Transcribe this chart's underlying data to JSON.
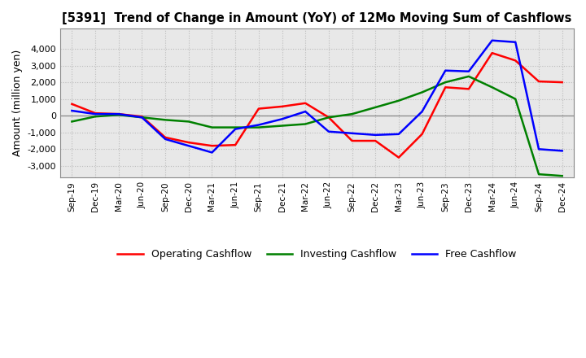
{
  "title": "[5391]  Trend of Change in Amount (YoY) of 12Mo Moving Sum of Cashflows",
  "ylabel": "Amount (million yen)",
  "x_labels": [
    "Sep-19",
    "Dec-19",
    "Mar-20",
    "Jun-20",
    "Sep-20",
    "Dec-20",
    "Mar-21",
    "Jun-21",
    "Sep-21",
    "Dec-21",
    "Mar-22",
    "Jun-22",
    "Sep-22",
    "Dec-22",
    "Mar-23",
    "Jun-23",
    "Sep-23",
    "Dec-23",
    "Mar-24",
    "Jun-24",
    "Sep-24",
    "Dec-24"
  ],
  "operating": [
    700,
    150,
    100,
    -50,
    -1300,
    -1600,
    -1800,
    -1750,
    420,
    550,
    750,
    -100,
    -1500,
    -1500,
    -2500,
    -1100,
    1700,
    1600,
    3750,
    3300,
    2050,
    2000
  ],
  "investing": [
    -350,
    -50,
    50,
    -100,
    -250,
    -350,
    -700,
    -700,
    -700,
    -600,
    -500,
    -100,
    100,
    500,
    900,
    1400,
    2000,
    2350,
    1700,
    1000,
    -3500,
    -3600
  ],
  "free": [
    300,
    100,
    100,
    -100,
    -1400,
    -1800,
    -2200,
    -800,
    -550,
    -200,
    250,
    -950,
    -1050,
    -1150,
    -1100,
    250,
    2700,
    2650,
    4500,
    4400,
    -2000,
    -2100
  ],
  "operating_color": "#FF0000",
  "investing_color": "#008000",
  "free_color": "#0000FF",
  "ylim": [
    -3700,
    5200
  ],
  "yticks": [
    -3000,
    -2000,
    -1000,
    0,
    1000,
    2000,
    3000,
    4000
  ],
  "plot_bg_color": "#E8E8E8",
  "fig_bg_color": "#FFFFFF",
  "grid_color": "#BBBBBB",
  "legend_labels": [
    "Operating Cashflow",
    "Investing Cashflow",
    "Free Cashflow"
  ]
}
